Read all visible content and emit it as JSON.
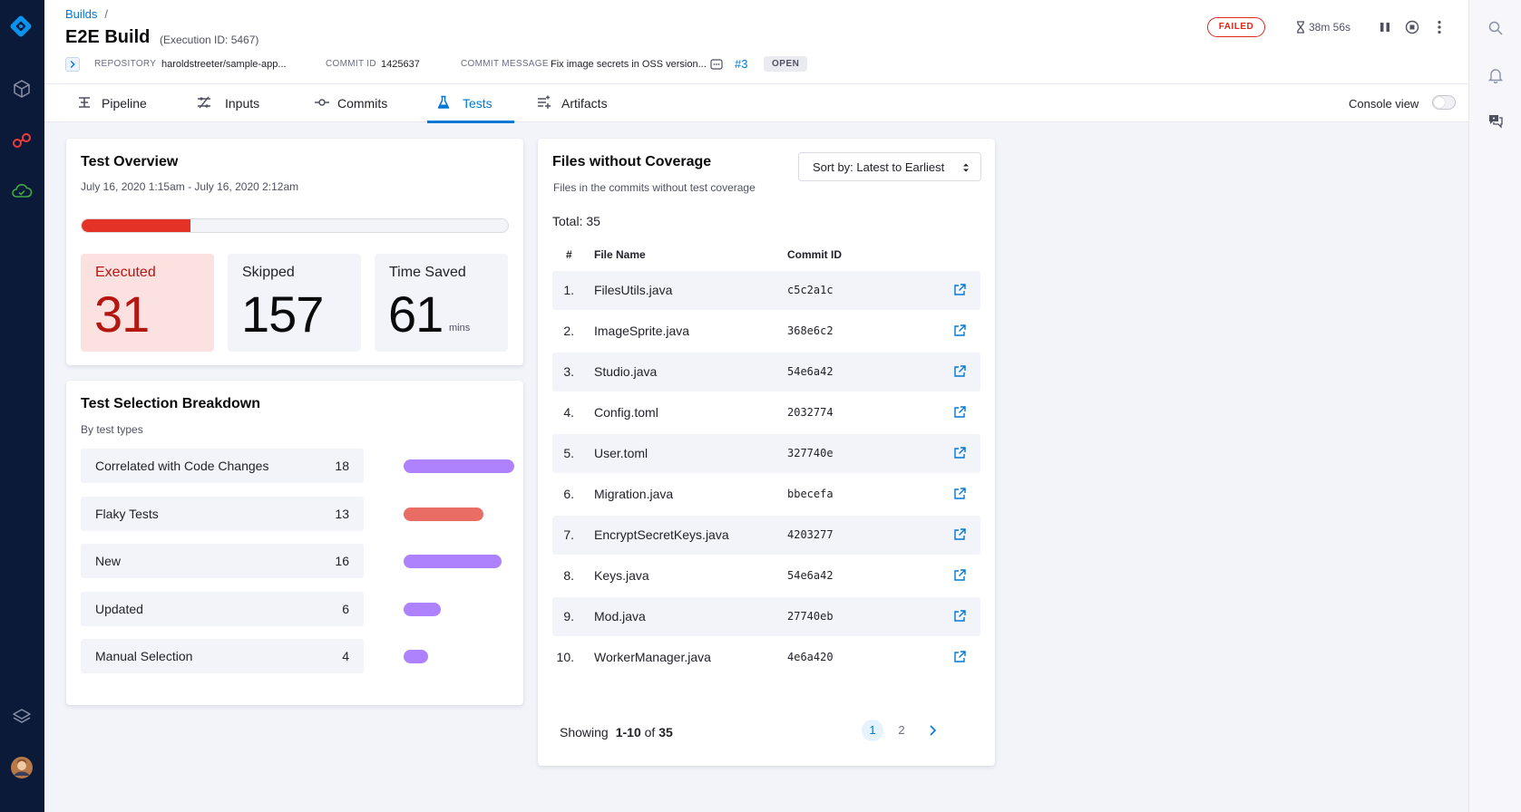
{
  "header": {
    "breadcrumb": "Builds",
    "breadcrumb_sep": "/",
    "title": "E2E Build",
    "execution_id": "(Execution ID: 5467)",
    "repository_label": "REPOSITORY",
    "repository_value": "haroldstreeter/sample-app...",
    "commit_id_label": "COMMIT ID",
    "commit_id_value": "1425637",
    "commit_message_label": "COMMIT MESSAGE",
    "commit_message_value": "Fix image secrets in OSS version...",
    "pr_number": "#3",
    "pr_status": "OPEN",
    "status": "FAILED",
    "duration": "38m 56s"
  },
  "tabs": [
    {
      "label": "Pipeline",
      "icon": "pipeline-icon"
    },
    {
      "label": "Inputs",
      "icon": "inputs-icon"
    },
    {
      "label": "Commits",
      "icon": "commit-icon"
    },
    {
      "label": "Tests",
      "icon": "flask-icon",
      "active": true
    },
    {
      "label": "Artifacts",
      "icon": "artifacts-icon"
    }
  ],
  "console_view_label": "Console view",
  "console_view_on": false,
  "overview": {
    "title": "Test Overview",
    "date_range": "July 16, 2020 1:15am - July 16, 2020 2:12am",
    "progress_fraction": 0.255,
    "stats": [
      {
        "label": "Executed",
        "value": "31",
        "unit": ""
      },
      {
        "label": "Skipped",
        "value": "157",
        "unit": ""
      },
      {
        "label": "Time Saved",
        "value": "61",
        "unit": "mins"
      }
    ]
  },
  "breakdown": {
    "title": "Test Selection Breakdown",
    "subtitle": "By test types",
    "max": 18,
    "rows": [
      {
        "label": "Correlated with Code Changes",
        "count": 18,
        "color": "#ae82fc"
      },
      {
        "label": "Flaky Tests",
        "count": 13,
        "color": "#e96d64"
      },
      {
        "label": "New",
        "count": 16,
        "color": "#ae82fc"
      },
      {
        "label": "Updated",
        "count": 6,
        "color": "#ae82fc"
      },
      {
        "label": "Manual Selection",
        "count": 4,
        "color": "#ae82fc"
      }
    ]
  },
  "coverage": {
    "title": "Files without Coverage",
    "subtitle": "Files in the commits without test coverage",
    "sort_label": "Sort by: Latest to Earliest",
    "total": "Total: 35",
    "col_num": "#",
    "col_file": "File Name",
    "col_commit": "Commit ID",
    "rows": [
      {
        "num": "1.",
        "file": "FilesUtils.java",
        "commit": "c5c2a1c"
      },
      {
        "num": "2.",
        "file": "ImageSprite.java",
        "commit": "368e6c2"
      },
      {
        "num": "3.",
        "file": "Studio.java",
        "commit": "54e6a42"
      },
      {
        "num": "4.",
        "file": "Config.toml",
        "commit": "2032774"
      },
      {
        "num": "5.",
        "file": "User.toml",
        "commit": "327740e"
      },
      {
        "num": "6.",
        "file": "Migration.java",
        "commit": "bbecefa"
      },
      {
        "num": "7.",
        "file": "EncryptSecretKeys.java",
        "commit": "4203277"
      },
      {
        "num": "8.",
        "file": "Keys.java",
        "commit": "54e6a42"
      },
      {
        "num": "9.",
        "file": "Mod.java",
        "commit": "27740eb"
      },
      {
        "num": "10.",
        "file": "WorkerManager.java",
        "commit": "4e6a420"
      }
    ],
    "showing_label": "Showing",
    "showing_range": "1-10",
    "showing_of": "of",
    "showing_total": "35",
    "pages": [
      "1",
      "2"
    ],
    "current_page": "1"
  }
}
